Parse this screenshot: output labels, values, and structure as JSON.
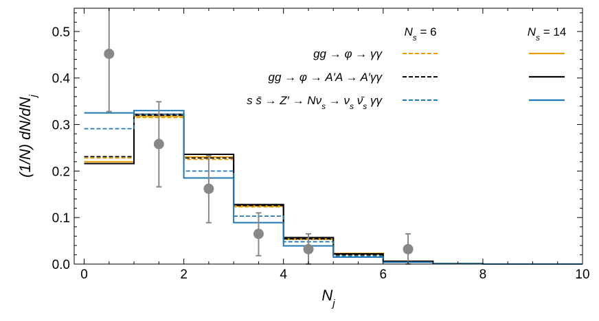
{
  "chart_data": {
    "type": "line",
    "xlabel": "N_j",
    "ylabel": "(1/N) dN/dN_j",
    "xlim": [
      -0.2,
      10
    ],
    "ylim": [
      0,
      0.55
    ],
    "x_ticks": [
      0,
      2,
      4,
      6,
      8,
      10
    ],
    "x_tick_labels": [
      "0",
      "2",
      "4",
      "6",
      "8",
      "10"
    ],
    "y_ticks": [
      0.0,
      0.1,
      0.2,
      0.3,
      0.4,
      0.5
    ],
    "y_tick_labels": [
      "0.0",
      "0.1",
      "0.2",
      "0.3",
      "0.4",
      "0.5"
    ],
    "bin_edges": [
      0,
      1,
      2,
      3,
      4,
      5,
      6,
      7,
      8,
      9,
      10
    ],
    "legend": {
      "placement": "top-right",
      "column_headers": [
        "N_s = 6",
        "N_s = 14"
      ],
      "rows": [
        {
          "label": "gg → φ → γγ",
          "color": "#E69F00"
        },
        {
          "label": "gg → φ → A′A → A′γγ",
          "color": "#000000"
        },
        {
          "label": "s s̄ → Z′ → Nν_s → ν_s ν̄_s γγ",
          "color": "#1F77B4"
        }
      ]
    },
    "series": [
      {
        "name": "gg → φ → γγ, N_s = 6",
        "style": "dashed",
        "color": "#E69F00",
        "values": [
          0.228,
          0.315,
          0.225,
          0.123,
          0.053,
          0.021,
          0.005,
          0.001,
          0.0,
          0.0
        ]
      },
      {
        "name": "gg → φ → γγ, N_s = 14",
        "style": "solid",
        "color": "#E69F00",
        "values": [
          0.22,
          0.318,
          0.23,
          0.125,
          0.055,
          0.023,
          0.006,
          0.001,
          0.0,
          0.0
        ]
      },
      {
        "name": "gg → φ → A′A → A′γγ, N_s = 6",
        "style": "dashed",
        "color": "#000000",
        "values": [
          0.231,
          0.32,
          0.228,
          0.126,
          0.054,
          0.02,
          0.005,
          0.001,
          0.0,
          0.0
        ]
      },
      {
        "name": "gg → φ → A′A → A′γγ, N_s = 14",
        "style": "solid",
        "color": "#000000",
        "values": [
          0.216,
          0.322,
          0.236,
          0.128,
          0.057,
          0.022,
          0.006,
          0.001,
          0.0,
          0.0
        ]
      },
      {
        "name": "s s̄ → Z′ → Nν_s → ν_s ν̄_s γγ, N_s = 6",
        "style": "dashed",
        "color": "#1F77B4",
        "values": [
          0.291,
          0.322,
          0.2,
          0.103,
          0.048,
          0.017,
          0.004,
          0.001,
          0.0,
          0.0
        ]
      },
      {
        "name": "s s̄ → Z′ → Nν_s → ν_s ν̄_s γγ, N_s = 14",
        "style": "solid",
        "color": "#1F77B4",
        "values": [
          0.325,
          0.33,
          0.185,
          0.089,
          0.039,
          0.015,
          0.004,
          0.001,
          0.0,
          0.0
        ]
      }
    ],
    "data_points": {
      "color": "#888888",
      "x": [
        0.5,
        1.5,
        2.5,
        3.5,
        4.5,
        6.5
      ],
      "y": [
        0.452,
        0.258,
        0.162,
        0.065,
        0.032,
        0.032
      ],
      "y_low": [
        0.328,
        0.166,
        0.089,
        0.018,
        0.0,
        0.0
      ],
      "y_high": [
        0.58,
        0.349,
        0.233,
        0.11,
        0.065,
        0.065
      ]
    }
  }
}
